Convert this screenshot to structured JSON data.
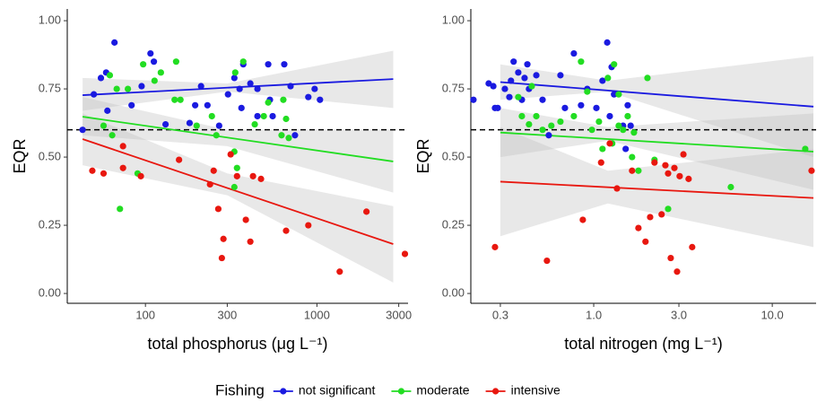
{
  "chart_data": [
    {
      "type": "scatter",
      "ylabel": "EQR",
      "xlabel": "total phosphorus (μg L⁻¹)",
      "xlog": true,
      "xlim": [
        35,
        3400
      ],
      "ylim": [
        -0.036,
        1.043
      ],
      "xticks": [
        100,
        300,
        1000,
        3000
      ],
      "yticks": [
        {
          "value": 0,
          "label": "0.00"
        },
        {
          "value": 0.25,
          "label": "0.25"
        },
        {
          "value": 0.5,
          "label": "0.50"
        },
        {
          "value": 0.75,
          "label": "0.75"
        },
        {
          "value": 1,
          "label": "1.00"
        }
      ],
      "hline": 0.6,
      "legend": {
        "title": "Fishing",
        "position": "bottom"
      },
      "series": [
        {
          "name": "not significant",
          "color": "#1a1ae0",
          "x": [
            43,
            50,
            55,
            59,
            60,
            66,
            83,
            95,
            107,
            112,
            131,
            181,
            195,
            211,
            230,
            269,
            303,
            330,
            354,
            372,
            409,
            450,
            520,
            532,
            552,
            645,
            702,
            891,
            970,
            745,
            1042,
            450,
            363
          ],
          "values": [
            0.6,
            0.73,
            0.79,
            0.81,
            0.67,
            0.92,
            0.69,
            0.76,
            0.88,
            0.85,
            0.62,
            0.625,
            0.69,
            0.76,
            0.69,
            0.615,
            0.73,
            0.79,
            0.75,
            0.84,
            0.77,
            0.75,
            0.84,
            0.71,
            0.65,
            0.84,
            0.76,
            0.72,
            0.75,
            0.58,
            0.71,
            0.65,
            0.68
          ],
          "fit": {
            "x": [
              43,
              2786
            ],
            "values": [
              0.727,
              0.786
            ]
          },
          "band": {
            "x": [
              43,
              300,
              2786
            ],
            "lower": [
              0.67,
              0.74,
              0.68
            ],
            "upper": [
              0.79,
              0.77,
              0.89
            ]
          }
        },
        {
          "name": "moderate",
          "color": "#22dd22",
          "x": [
            57,
            62,
            68,
            79,
            97,
            113,
            123,
            148,
            151,
            160,
            199,
            244,
            259,
            330,
            330,
            334,
            342,
            372,
            434,
            490,
            520,
            622,
            637,
            685,
            661,
            71,
            90,
            64
          ],
          "values": [
            0.615,
            0.8,
            0.75,
            0.75,
            0.84,
            0.78,
            0.81,
            0.71,
            0.85,
            0.71,
            0.615,
            0.65,
            0.58,
            0.52,
            0.39,
            0.81,
            0.46,
            0.85,
            0.62,
            0.65,
            0.7,
            0.58,
            0.71,
            0.57,
            0.64,
            0.31,
            0.44,
            0.58
          ],
          "fit": {
            "x": [
              43,
              2786
            ],
            "values": [
              0.648,
              0.484
            ]
          },
          "band": {
            "x": [
              43,
              300,
              2786
            ],
            "lower": [
              0.58,
              0.54,
              0.37
            ],
            "upper": [
              0.72,
              0.6,
              0.6
            ]
          }
        },
        {
          "name": "intensive",
          "color": "#e8170f",
          "x": [
            49,
            57,
            74,
            74,
            94,
            157,
            238,
            250,
            266,
            285,
            279,
            314,
            342,
            385,
            409,
            424,
            472,
            661,
            891,
            1358,
            1945,
            3260
          ],
          "values": [
            0.45,
            0.44,
            0.46,
            0.54,
            0.43,
            0.49,
            0.4,
            0.45,
            0.31,
            0.2,
            0.13,
            0.51,
            0.43,
            0.27,
            0.19,
            0.43,
            0.42,
            0.23,
            0.25,
            0.08,
            0.3,
            0.145
          ],
          "fit": {
            "x": [
              43,
              2786
            ],
            "values": [
              0.566,
              0.181
            ]
          },
          "band": {
            "x": [
              43,
              300,
              2786
            ],
            "lower": [
              0.47,
              0.36,
              0.04
            ],
            "upper": [
              0.66,
              0.44,
              0.32
            ]
          }
        }
      ]
    },
    {
      "type": "scatter",
      "ylabel": "EQR",
      "xlabel": "total nitrogen (mg L⁻¹)",
      "xlog": true,
      "xlim": [
        0.205,
        17.6
      ],
      "ylim": [
        -0.036,
        1.043
      ],
      "xticks": [
        0.3,
        {
          "value": 1,
          "label": "1.0"
        },
        {
          "value": 3,
          "label": "3.0"
        },
        {
          "value": 10,
          "label": "10.0"
        }
      ],
      "yticks": [
        {
          "value": 0,
          "label": "0.00"
        },
        {
          "value": 0.25,
          "label": "0.25"
        },
        {
          "value": 0.5,
          "label": "0.50"
        },
        {
          "value": 0.75,
          "label": "0.75"
        },
        {
          "value": 1,
          "label": "1.00"
        }
      ],
      "hline": 0.6,
      "series": [
        {
          "name": "not significant",
          "color": "#1a1ae0",
          "x": [
            0.212,
            0.258,
            0.274,
            0.28,
            0.318,
            0.337,
            0.344,
            0.356,
            0.378,
            0.396,
            0.41,
            0.425,
            0.434,
            0.477,
            0.651,
            0.69,
            0.774,
            0.849,
            0.92,
            1.035,
            1.12,
            1.23,
            1.26,
            1.19,
            1.3,
            1.46,
            1.51,
            1.55,
            1.61,
            0.29,
            0.517,
            0.56
          ],
          "values": [
            0.71,
            0.77,
            0.76,
            0.68,
            0.75,
            0.72,
            0.78,
            0.85,
            0.81,
            0.71,
            0.79,
            0.84,
            0.75,
            0.8,
            0.8,
            0.68,
            0.88,
            0.69,
            0.75,
            0.68,
            0.78,
            0.65,
            0.83,
            0.92,
            0.73,
            0.615,
            0.53,
            0.69,
            0.615,
            0.68,
            0.71,
            0.58
          ],
          "fit": {
            "x": [
              0.3,
              17
            ],
            "values": [
              0.775,
              0.685
            ]
          },
          "band": {
            "x": [
              0.3,
              1.2,
              17
            ],
            "lower": [
              0.71,
              0.74,
              0.5
            ],
            "upper": [
              0.84,
              0.78,
              0.87
            ]
          }
        },
        {
          "name": "moderate",
          "color": "#22dd22",
          "x": [
            0.378,
            0.396,
            0.434,
            0.45,
            0.477,
            0.517,
            0.579,
            0.651,
            0.774,
            0.849,
            0.92,
            0.977,
            1.07,
            1.12,
            1.2,
            1.27,
            1.3,
            1.38,
            1.38,
            1.46,
            1.55,
            1.64,
            1.68,
            1.78,
            2.0,
            2.19,
            2.61,
            5.86,
            15.3
          ],
          "values": [
            0.72,
            0.65,
            0.62,
            0.76,
            0.65,
            0.6,
            0.615,
            0.63,
            0.65,
            0.85,
            0.74,
            0.6,
            0.63,
            0.53,
            0.79,
            0.55,
            0.84,
            0.615,
            0.73,
            0.6,
            0.65,
            0.5,
            0.59,
            0.45,
            0.79,
            0.49,
            0.31,
            0.39,
            0.53
          ],
          "fit": {
            "x": [
              0.3,
              17
            ],
            "values": [
              0.59,
              0.52
            ]
          },
          "band": {
            "x": [
              0.3,
              1.2,
              17
            ],
            "lower": [
              0.5,
              0.56,
              0.38
            ],
            "upper": [
              0.68,
              0.61,
              0.66
            ]
          }
        },
        {
          "name": "intensive",
          "color": "#e8170f",
          "x": [
            0.28,
            0.547,
            0.869,
            1.1,
            1.23,
            1.35,
            1.64,
            1.78,
            1.95,
            2.07,
            2.19,
            2.4,
            2.52,
            2.61,
            2.7,
            2.83,
            2.93,
            3.03,
            3.18,
            3.4,
            3.56,
            16.6
          ],
          "values": [
            0.17,
            0.12,
            0.27,
            0.48,
            0.55,
            0.385,
            0.45,
            0.24,
            0.19,
            0.28,
            0.48,
            0.29,
            0.47,
            0.44,
            0.13,
            0.46,
            0.08,
            0.43,
            0.51,
            0.42,
            0.17,
            0.45
          ],
          "fit": {
            "x": [
              0.3,
              17
            ],
            "values": [
              0.41,
              0.35
            ]
          },
          "band": {
            "x": [
              0.3,
              1.2,
              17
            ],
            "lower": [
              0.21,
              0.33,
              0.17
            ],
            "upper": [
              0.61,
              0.45,
              0.53
            ]
          }
        }
      ]
    }
  ]
}
